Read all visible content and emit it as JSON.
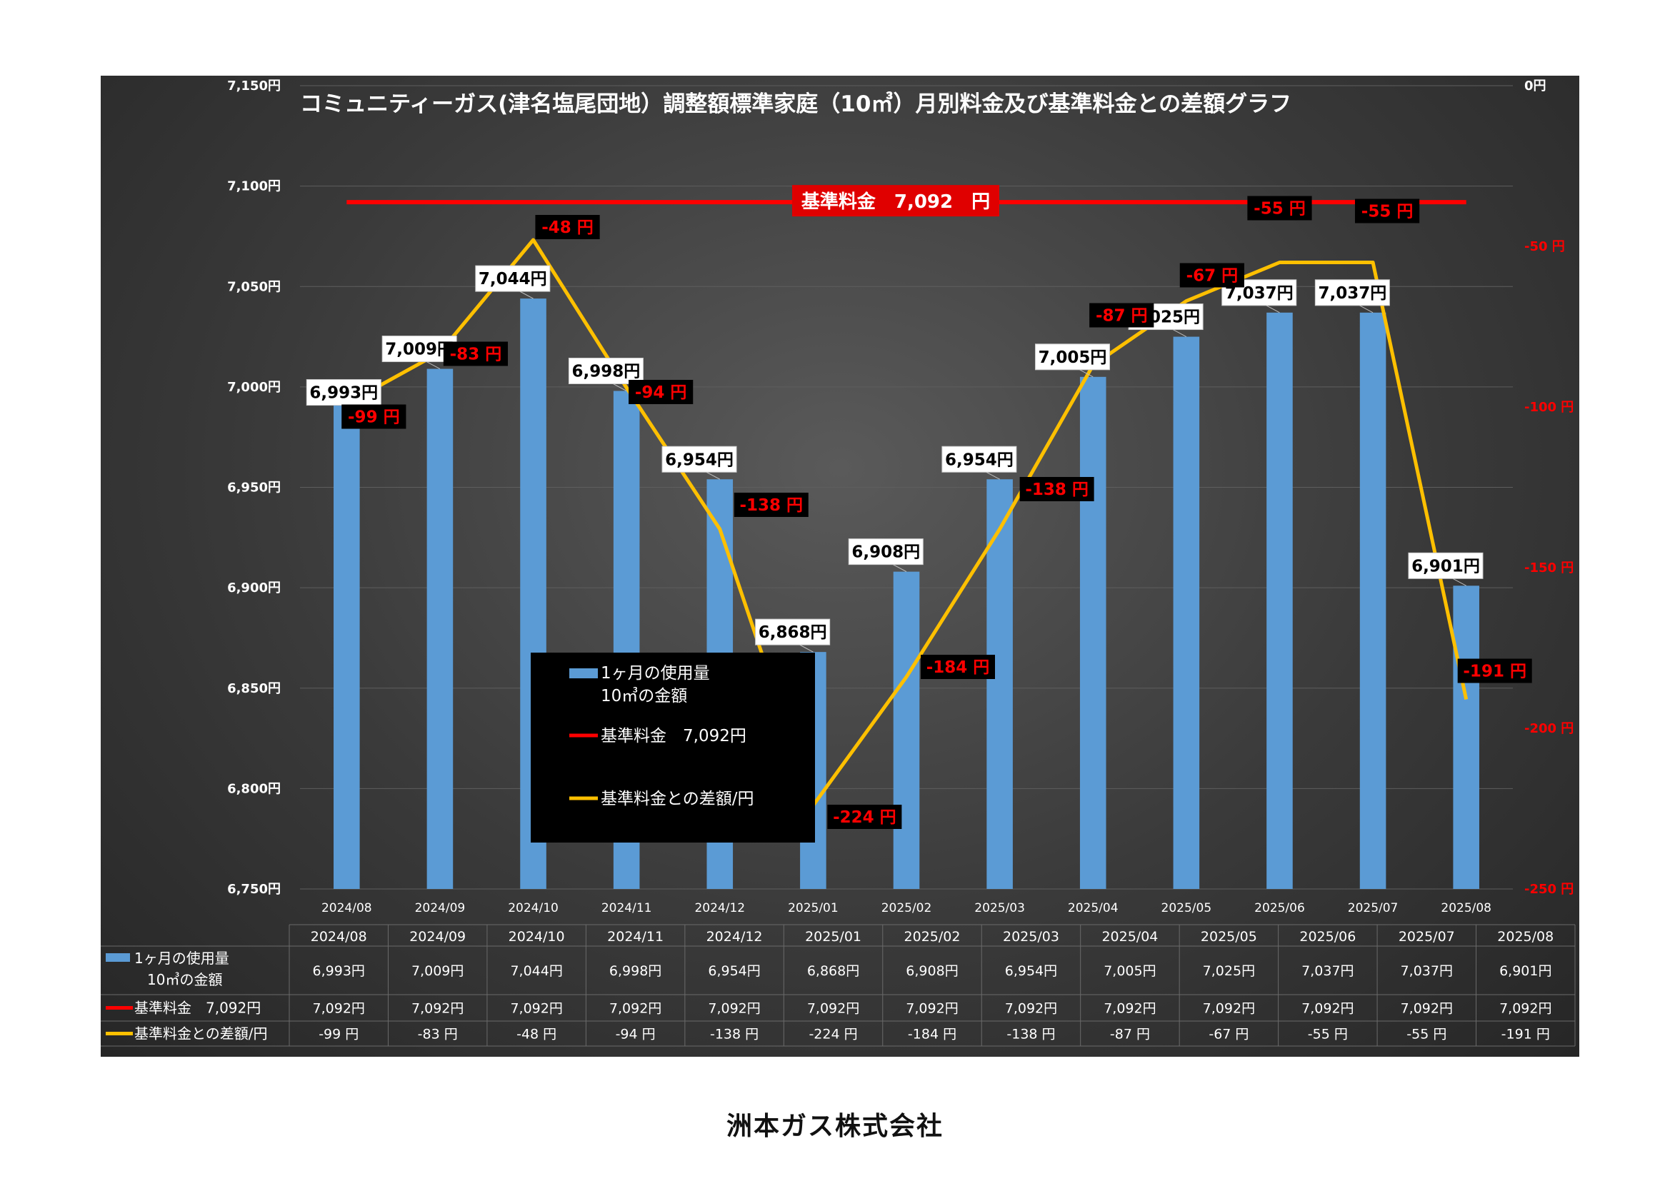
{
  "chart_data": {
    "type": "bar",
    "title": "コミュニティーガス(津名塩尾団地）調整額標準家庭（10㎥）月別料金及び基準料金との差額グラフ",
    "categories": [
      "2024/08",
      "2024/09",
      "2024/10",
      "2024/11",
      "2024/12",
      "2025/01",
      "2025/02",
      "2025/03",
      "2025/04",
      "2025/05",
      "2025/06",
      "2025/07",
      "2025/08"
    ],
    "series": [
      {
        "name": "1ヶ月の使用量 10㎥の金額",
        "type": "bar",
        "axis": "left",
        "color": "#5b9bd5",
        "values": [
          6993,
          7009,
          7044,
          6998,
          6954,
          6868,
          6908,
          6954,
          7005,
          7025,
          7037,
          7037,
          6901
        ],
        "labels": [
          "6,993円",
          "7,009円",
          "7,044円",
          "6,998円",
          "6,954円",
          "6,868円",
          "6,908円",
          "6,954円",
          "7,005円",
          "7,025円",
          "7,037円",
          "7,037円",
          "6,901円"
        ]
      },
      {
        "name": "基準料金 7,092円",
        "type": "line",
        "axis": "left",
        "color": "#ff0000",
        "values": [
          7092,
          7092,
          7092,
          7092,
          7092,
          7092,
          7092,
          7092,
          7092,
          7092,
          7092,
          7092,
          7092
        ]
      },
      {
        "name": "基準料金との差額/円",
        "type": "line",
        "axis": "right",
        "color": "#ffc000",
        "values": [
          -99,
          -83,
          -48,
          -94,
          -138,
          -224,
          -184,
          -138,
          -87,
          -67,
          -55,
          -55,
          -191
        ],
        "labels": [
          "-99 円",
          "-83 円",
          "-48 円",
          "-94 円",
          "-138 円",
          "-224 円",
          "-184 円",
          "-138 円",
          "-87 円",
          "-67 円",
          "-55 円",
          "-55 円",
          "-191 円"
        ]
      }
    ],
    "left_axis": {
      "ylim": [
        6750,
        7150
      ],
      "ticks": [
        6750,
        6800,
        6850,
        6900,
        6950,
        7000,
        7050,
        7100,
        7150
      ],
      "tick_labels": [
        "6,750円",
        "6,800円",
        "6,850円",
        "6,900円",
        "6,950円",
        "7,000円",
        "7,050円",
        "7,100円",
        "7,150円"
      ]
    },
    "right_axis": {
      "ylim": [
        -250,
        0
      ],
      "ticks": [
        -250,
        -200,
        -150,
        -100,
        -50,
        0
      ],
      "tick_labels": [
        "-250 円",
        "-200 円",
        "-150 円",
        "-100 円",
        "-50 円",
        "0円"
      ]
    },
    "base_label": "基準料金　7,092　円",
    "legend": {
      "position": "center-left",
      "items": [
        {
          "line1": "1ヶ月の使用量",
          "line2": "10㎥の金額",
          "color": "#5b9bd5",
          "shape": "bar"
        },
        {
          "line1": "基準料金　7,092円",
          "color": "#ff0000",
          "shape": "line"
        },
        {
          "line1": "基準料金との差額/円",
          "color": "#ffc000",
          "shape": "line"
        }
      ]
    },
    "table": {
      "header": [
        "2024/08",
        "2024/09",
        "2024/10",
        "2024/11",
        "2024/12",
        "2025/01",
        "2025/02",
        "2025/03",
        "2025/04",
        "2025/05",
        "2025/06",
        "2025/07",
        "2025/08"
      ],
      "rows": [
        {
          "line1": "1ヶ月の使用量",
          "line2": "10㎥の金額",
          "color": "#5b9bd5",
          "cells": [
            "6,993円",
            "7,009円",
            "7,044円",
            "6,998円",
            "6,954円",
            "6,868円",
            "6,908円",
            "6,954円",
            "7,005円",
            "7,025円",
            "7,037円",
            "7,037円",
            "6,901円"
          ]
        },
        {
          "line1": "基準料金　7,092円",
          "color": "#ff0000",
          "cells": [
            "7,092円",
            "7,092円",
            "7,092円",
            "7,092円",
            "7,092円",
            "7,092円",
            "7,092円",
            "7,092円",
            "7,092円",
            "7,092円",
            "7,092円",
            "7,092円",
            "7,092円"
          ]
        },
        {
          "line1": "基準料金との差額/円",
          "color": "#ffc000",
          "cells": [
            "-99 円",
            "-83 円",
            "-48 円",
            "-94 円",
            "-138 円",
            "-224 円",
            "-184 円",
            "-138 円",
            "-87 円",
            "-67 円",
            "-55 円",
            "-55 円",
            "-191 円"
          ]
        }
      ]
    }
  },
  "footer": {
    "company": "洲本ガス株式会社"
  }
}
